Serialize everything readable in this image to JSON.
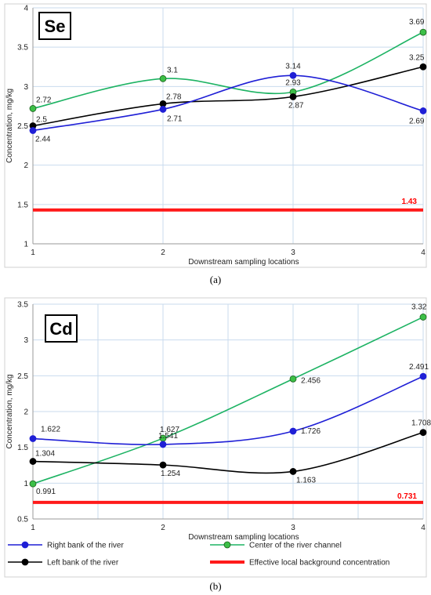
{
  "colors": {
    "right_bank": "#1f1fd6",
    "center": "#1db363",
    "left_bank": "#000000",
    "background": "#ff1a1a",
    "center_marker": "#3cbf47",
    "grid": "#c9dbee",
    "label_red": "#ff0000"
  },
  "legend": {
    "items": [
      {
        "key": "right_bank",
        "label": "Right bank of the river"
      },
      {
        "key": "center",
        "label": "Center of the river channel"
      },
      {
        "key": "left_bank",
        "label": "Left bank of the river"
      },
      {
        "key": "background",
        "label": "Effective local background concentration"
      }
    ]
  },
  "chart_data": [
    {
      "type": "line",
      "badge": "Se",
      "caption": "(a)",
      "xlabel": "Downstream sampling locations",
      "ylabel": "Concentration, mg/kg",
      "x": [
        1,
        2,
        3,
        4
      ],
      "xlim": [
        1,
        4
      ],
      "ylim": [
        1,
        4
      ],
      "yticks": [
        "1",
        "1.5",
        "2",
        "2.5",
        "3",
        "3.5",
        "4"
      ],
      "xticks": [
        "1",
        "2",
        "3",
        "4"
      ],
      "series": [
        {
          "key": "right_bank",
          "values": [
            2.44,
            2.71,
            3.14,
            2.69
          ],
          "labels": [
            "2.44",
            "2.71",
            "3.14",
            "2.69"
          ]
        },
        {
          "key": "center",
          "values": [
            2.72,
            3.1,
            2.93,
            3.69
          ],
          "labels": [
            "2.72",
            "3.1",
            "2.93",
            "3.69"
          ]
        },
        {
          "key": "left_bank",
          "values": [
            2.5,
            2.78,
            2.87,
            3.25
          ],
          "labels": [
            "2.5",
            "2.78",
            "2.87",
            "3.25"
          ]
        }
      ],
      "background": {
        "value": 1.43,
        "label": "1.43"
      }
    },
    {
      "type": "line",
      "badge": "Cd",
      "caption": "(b)",
      "xlabel": "Downstream sampling locations",
      "ylabel": "Concentration, mg/kg",
      "x": [
        1,
        2,
        3,
        4
      ],
      "xlim": [
        1,
        4
      ],
      "ylim": [
        0.5,
        3.5
      ],
      "yticks": [
        "0.5",
        "1",
        "1.5",
        "2",
        "2.5",
        "3",
        "3.5"
      ],
      "xticks": [
        "1",
        "2",
        "3",
        "4"
      ],
      "series": [
        {
          "key": "right_bank",
          "values": [
            1.622,
            1.541,
            1.726,
            2.491
          ],
          "labels": [
            "1.622",
            "1.541",
            "1.726",
            "2.491"
          ]
        },
        {
          "key": "center",
          "values": [
            0.991,
            1.627,
            2.456,
            3.32
          ],
          "labels": [
            "0.991",
            "1.627",
            "2.456",
            "3.32"
          ]
        },
        {
          "key": "left_bank",
          "values": [
            1.304,
            1.254,
            1.163,
            1.708
          ],
          "labels": [
            "1.304",
            "1.254",
            "1.163",
            "1.708"
          ]
        }
      ],
      "background": {
        "value": 0.731,
        "label": "0.731"
      }
    }
  ]
}
